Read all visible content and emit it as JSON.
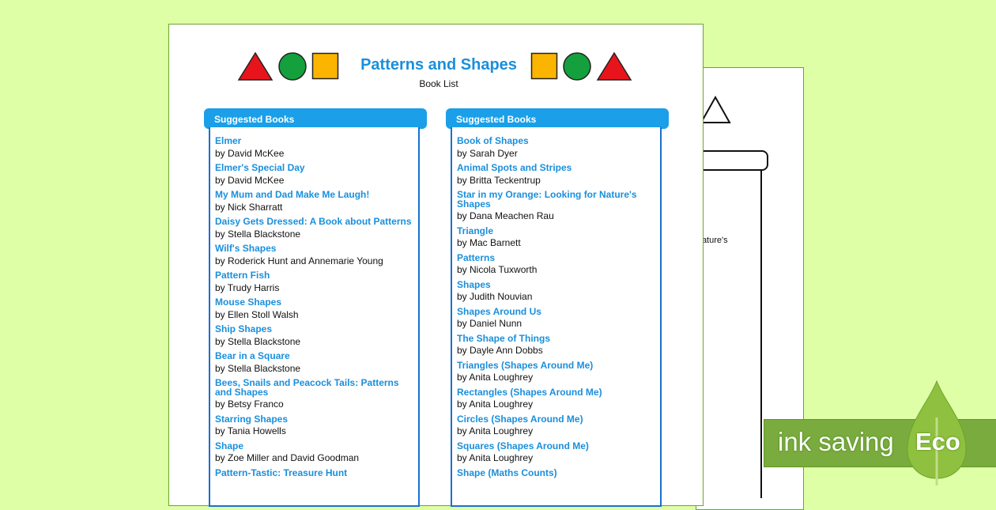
{
  "back_page": {
    "fragment": "Nature's"
  },
  "header": {
    "title": "Patterns and Shapes",
    "subtitle": "Book List"
  },
  "colors": {
    "title": "#1a8fdc",
    "header_bar": "#1a9fe8",
    "border": "#1a70d0",
    "red": "#e8141c",
    "green": "#14a03c",
    "orange": "#fbb400",
    "background": "#dfffa6"
  },
  "columns": [
    {
      "heading": "Suggested Books",
      "books": [
        {
          "title": "Elmer",
          "author": "by David McKee"
        },
        {
          "title": "Elmer's Special Day",
          "author": "by David McKee"
        },
        {
          "title": "My Mum and Dad Make Me Laugh!",
          "author": "by Nick Sharratt"
        },
        {
          "title": "Daisy Gets Dressed: A Book about Patterns",
          "author": "by Stella Blackstone"
        },
        {
          "title": "Wilf's Shapes",
          "author": "by Roderick Hunt and Annemarie Young"
        },
        {
          "title": "Pattern Fish",
          "author": "by Trudy Harris"
        },
        {
          "title": "Mouse Shapes",
          "author": "by Ellen Stoll Walsh"
        },
        {
          "title": "Ship Shapes",
          "author": "by Stella Blackstone"
        },
        {
          "title": "Bear in a Square",
          "author": "by Stella Blackstone"
        },
        {
          "title": "Bees, Snails and Peacock Tails: Patterns and Shapes",
          "author": "by Betsy Franco"
        },
        {
          "title": "Starring Shapes",
          "author": "by Tania Howells"
        },
        {
          "title": "Shape",
          "author": "by Zoe Miller and David Goodman"
        },
        {
          "title": "Pattern-Tastic: Treasure Hunt",
          "author": ""
        }
      ]
    },
    {
      "heading": "Suggested Books",
      "books": [
        {
          "title": "Book of Shapes",
          "author": "by Sarah Dyer"
        },
        {
          "title": "Animal Spots and Stripes",
          "author": "by Britta Teckentrup"
        },
        {
          "title": "Star in my Orange: Looking for Nature's Shapes",
          "author": "by Dana Meachen Rau"
        },
        {
          "title": "Triangle",
          "author": "by Mac Barnett"
        },
        {
          "title": "Patterns",
          "author": "by Nicola Tuxworth"
        },
        {
          "title": "Shapes",
          "author": "by Judith Nouvian"
        },
        {
          "title": "Shapes Around Us",
          "author": "by Daniel Nunn"
        },
        {
          "title": "The Shape of Things",
          "author": "by Dayle Ann Dobbs"
        },
        {
          "title": "Triangles (Shapes Around Me)",
          "author": "by Anita Loughrey"
        },
        {
          "title": "Rectangles (Shapes Around Me)",
          "author": "by Anita Loughrey"
        },
        {
          "title": "Circles (Shapes Around Me)",
          "author": "by Anita Loughrey"
        },
        {
          "title": "Squares (Shapes Around Me)",
          "author": "by Anita Loughrey"
        },
        {
          "title": "Shape (Maths Counts)",
          "author": ""
        }
      ]
    }
  ],
  "badge": {
    "text": "ink saving",
    "eco": "Eco"
  }
}
